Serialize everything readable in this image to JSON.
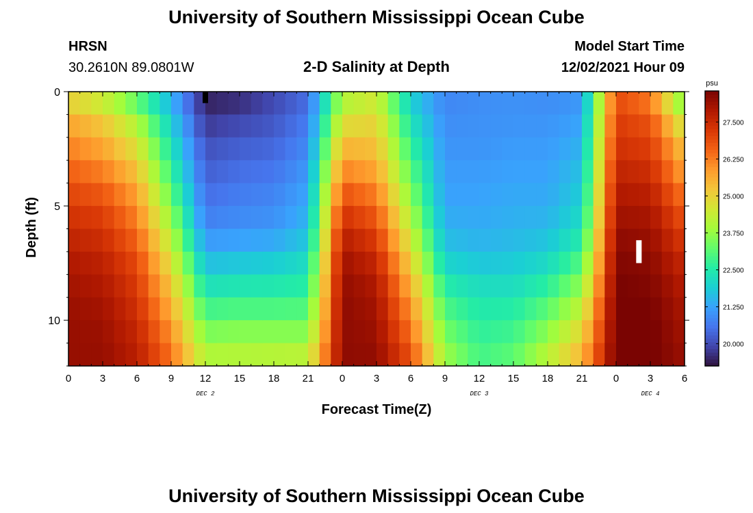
{
  "header": {
    "title": "University of Southern Mississippi Ocean Cube",
    "station": "HRSN",
    "coordinates": "30.2610N  89.0801W",
    "plot_title": "2-D Salinity at Depth",
    "model_start_label": "Model Start Time",
    "model_start_value": "12/02/2021 Hour 09"
  },
  "footer": {
    "title": "University of Southern Mississippi Ocean Cube"
  },
  "chart_data": {
    "type": "heatmap",
    "title": "2-D Salinity at Depth",
    "xlabel": "Forecast Time(Z)",
    "ylabel": "Depth (ft)",
    "x_start_hour": 0,
    "x_end_hour": 54,
    "x_tick_hours": [
      0,
      3,
      6,
      9,
      12,
      15,
      18,
      21,
      24,
      27,
      30,
      33,
      36,
      39,
      42,
      45,
      48,
      51,
      54
    ],
    "x_tick_labels": [
      "0",
      "3",
      "6",
      "9",
      "12",
      "15",
      "18",
      "21",
      "0",
      "3",
      "6",
      "9",
      "12",
      "15",
      "18",
      "21",
      "0",
      "3",
      "6"
    ],
    "date_labels": [
      {
        "hour": 12,
        "text": "DEC 2"
      },
      {
        "hour": 36,
        "text": "DEC 3"
      },
      {
        "hour": 51,
        "text": "DEC 4"
      }
    ],
    "ylim": [
      0,
      12
    ],
    "y_ticks": [
      0,
      5,
      10
    ],
    "y_tick_labels": [
      "0",
      "5",
      "10"
    ],
    "depths": [
      0,
      1,
      2,
      3,
      4,
      5,
      6,
      7,
      8,
      9,
      10,
      11,
      12
    ],
    "times_hours": [
      0,
      3,
      6,
      9,
      12,
      15,
      18,
      21,
      24,
      27,
      30,
      33,
      36,
      39,
      42,
      45,
      48,
      51,
      54
    ],
    "salinity_psu": [
      [
        24.6,
        24.0,
        22.8,
        21.3,
        19.4,
        19.5,
        19.9,
        20.4,
        23.8,
        24.3,
        21.8,
        20.8,
        20.9,
        21.0,
        20.9,
        21.0,
        26.8,
        26.0,
        23.0
      ],
      [
        25.5,
        25.0,
        23.8,
        21.8,
        19.6,
        19.8,
        20.1,
        20.6,
        24.5,
        24.8,
        22.2,
        20.9,
        21.0,
        21.0,
        21.0,
        21.2,
        27.1,
        26.7,
        24.0
      ],
      [
        26.0,
        25.5,
        24.5,
        22.2,
        20.0,
        20.2,
        20.3,
        20.8,
        25.2,
        25.2,
        22.6,
        21.0,
        21.0,
        21.1,
        21.1,
        21.4,
        27.3,
        27.0,
        25.0
      ],
      [
        26.4,
        26.0,
        25.0,
        22.6,
        20.2,
        20.4,
        20.5,
        21.0,
        25.8,
        25.5,
        23.0,
        21.1,
        21.1,
        21.2,
        21.2,
        21.6,
        27.5,
        27.3,
        25.5
      ],
      [
        26.8,
        26.5,
        25.6,
        23.0,
        20.4,
        20.6,
        20.7,
        21.2,
        26.5,
        26.0,
        23.4,
        21.2,
        21.2,
        21.3,
        21.3,
        21.8,
        27.8,
        27.6,
        26.0
      ],
      [
        27.2,
        27.0,
        26.0,
        23.5,
        20.6,
        20.8,
        20.9,
        21.4,
        27.1,
        26.5,
        23.8,
        21.3,
        21.3,
        21.4,
        21.4,
        22.0,
        28.0,
        27.9,
        26.6
      ],
      [
        27.5,
        27.3,
        26.4,
        24.0,
        20.9,
        21.0,
        21.1,
        21.6,
        27.6,
        27.0,
        24.3,
        21.5,
        21.4,
        21.5,
        21.6,
        22.3,
        28.2,
        28.1,
        27.0
      ],
      [
        27.8,
        27.6,
        26.8,
        24.5,
        21.4,
        21.5,
        21.6,
        22.0,
        28.0,
        27.4,
        24.8,
        21.8,
        21.6,
        21.7,
        21.9,
        22.8,
        28.4,
        28.3,
        27.4
      ],
      [
        28.0,
        27.8,
        27.1,
        25.0,
        22.0,
        22.1,
        22.2,
        22.4,
        28.2,
        27.8,
        25.3,
        22.3,
        22.0,
        22.0,
        22.4,
        23.4,
        28.5,
        28.4,
        27.7
      ],
      [
        28.1,
        28.0,
        27.3,
        25.4,
        22.6,
        22.7,
        22.7,
        22.8,
        28.3,
        28.0,
        25.8,
        22.8,
        22.4,
        22.4,
        22.9,
        24.0,
        28.6,
        28.5,
        27.9
      ],
      [
        28.2,
        28.1,
        27.5,
        25.8,
        23.2,
        23.3,
        23.3,
        23.3,
        28.3,
        28.1,
        26.2,
        23.2,
        22.6,
        22.7,
        23.4,
        24.6,
        28.6,
        28.6,
        28.0
      ],
      [
        28.2,
        28.2,
        27.7,
        26.2,
        23.8,
        23.9,
        23.9,
        23.9,
        28.3,
        28.2,
        26.6,
        23.6,
        22.8,
        23.0,
        23.9,
        25.2,
        28.6,
        28.6,
        28.1
      ],
      [
        28.2,
        28.2,
        27.8,
        26.5,
        24.3,
        24.3,
        24.4,
        24.5,
        28.3,
        28.3,
        27.0,
        24.0,
        23.0,
        23.3,
        24.4,
        25.7,
        28.6,
        28.6,
        28.2
      ]
    ],
    "colorbar": {
      "unit": "psu",
      "min": 19.25,
      "max": 28.55,
      "ticks": [
        20.0,
        21.25,
        22.5,
        23.75,
        25.0,
        26.25,
        27.5
      ],
      "tick_labels": [
        "20.000",
        "21.250",
        "22.500",
        "23.750",
        "25.000",
        "26.250",
        "27.500"
      ]
    },
    "colormap": [
      "#30123b",
      "#4145ab",
      "#4675ed",
      "#39a2fc",
      "#1bcfd4",
      "#24eca6",
      "#61fc6c",
      "#a4fc3b",
      "#d1e834",
      "#f3c63a",
      "#fe9b2d",
      "#f36315",
      "#d93806",
      "#b11901",
      "#7a0402"
    ],
    "markers": [
      {
        "hour": 12,
        "depth_from": 0,
        "depth_to": 0.5,
        "color": "#000000"
      },
      {
        "hour": 50,
        "depth_from": 6.5,
        "depth_to": 7.5,
        "color": "#ffffff"
      }
    ]
  }
}
